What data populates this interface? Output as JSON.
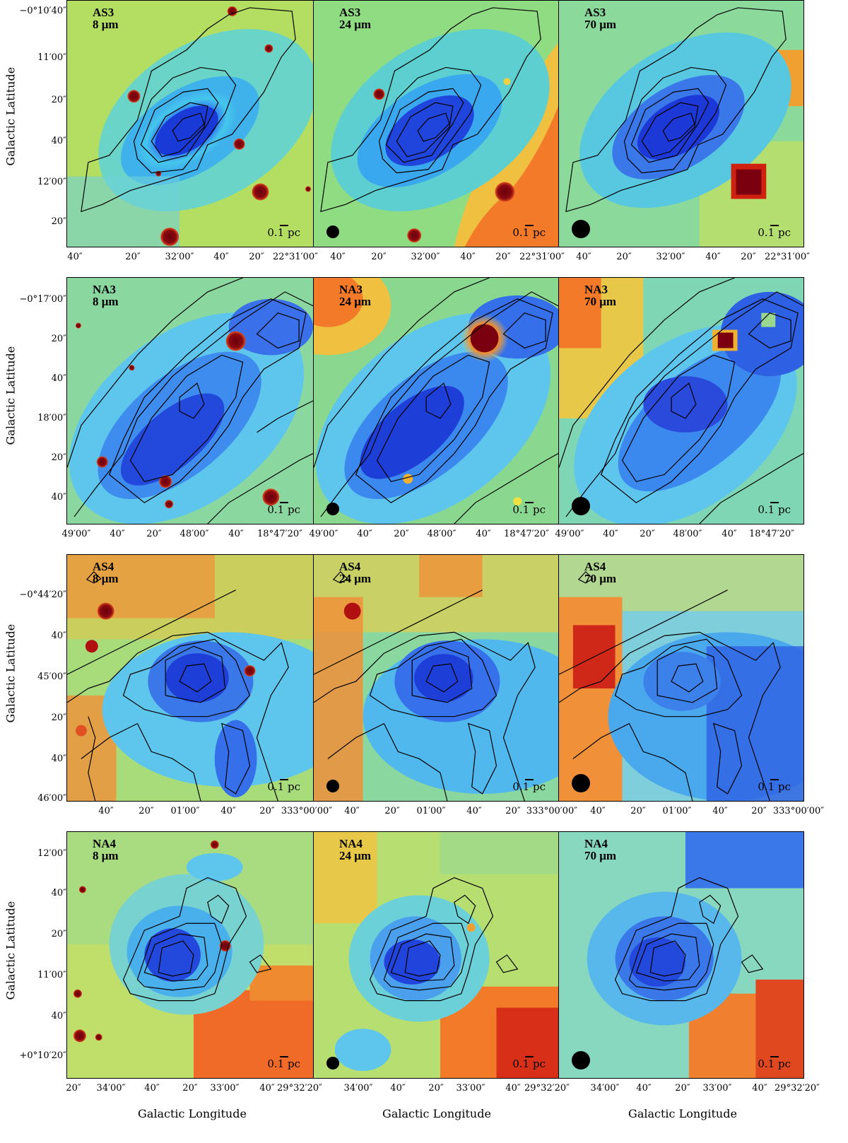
{
  "colors": {
    "low": "#1f3fe0",
    "mid": "#3fd0e8",
    "background": "#a8e060",
    "high": "#f06a20",
    "peak": "#7a0010",
    "contour": "#000000"
  },
  "scale_label": "0.1 pc",
  "axis": {
    "ylabel": "Galactic Latitude",
    "xlabel": "Galactic Longitude"
  },
  "rows": [
    {
      "name": "AS3",
      "yticks": [
        "−0°10′40″",
        "11′00″",
        "20″",
        "40″",
        "12′00″",
        "20″"
      ],
      "xticks": [
        "40″",
        "20″",
        "32′00″",
        "40″",
        "20″",
        "22°31′00″"
      ],
      "panels": [
        {
          "label": "AS3",
          "band": "8 μm"
        },
        {
          "label": "AS3",
          "band": "24 μm"
        },
        {
          "label": "AS3",
          "band": "70 μm"
        }
      ]
    },
    {
      "name": "NA3",
      "yticks": [
        "−0°17′00″",
        "20″",
        "40″",
        "18′00″",
        "20″",
        "40″"
      ],
      "xticks": [
        "49′00″",
        "40″",
        "20″",
        "48′00″",
        "40″",
        "18°47′20″"
      ],
      "panels": [
        {
          "label": "NA3",
          "band": "8 μm"
        },
        {
          "label": "NA3",
          "band": "24 μm"
        },
        {
          "label": "NA3",
          "band": "70 μm"
        }
      ]
    },
    {
      "name": "AS4",
      "yticks": [
        "−0°44′20″",
        "40″",
        "45′00″",
        "20″",
        "40″",
        "46′00″"
      ],
      "xticks": [
        "40″",
        "20″",
        "01′00″",
        "40″",
        "20″",
        "333°00′00″"
      ],
      "panels": [
        {
          "label": "AS4",
          "band": "8 μm"
        },
        {
          "label": "AS4",
          "band": "24 μm"
        },
        {
          "label": "AS4",
          "band": "70 μm"
        }
      ]
    },
    {
      "name": "NA4",
      "yticks": [
        "12′00″",
        "40″",
        "20″",
        "11′00″",
        "40″",
        "+0°10′20″"
      ],
      "xticks": [
        "20″",
        "34′00″",
        "40″",
        "20″",
        "33′00″",
        "40″",
        "29°32′20″"
      ],
      "panels": [
        {
          "label": "NA4",
          "band": "8 μm"
        },
        {
          "label": "NA4",
          "band": "24 μm"
        },
        {
          "label": "NA4",
          "band": "70 μm"
        }
      ]
    }
  ]
}
